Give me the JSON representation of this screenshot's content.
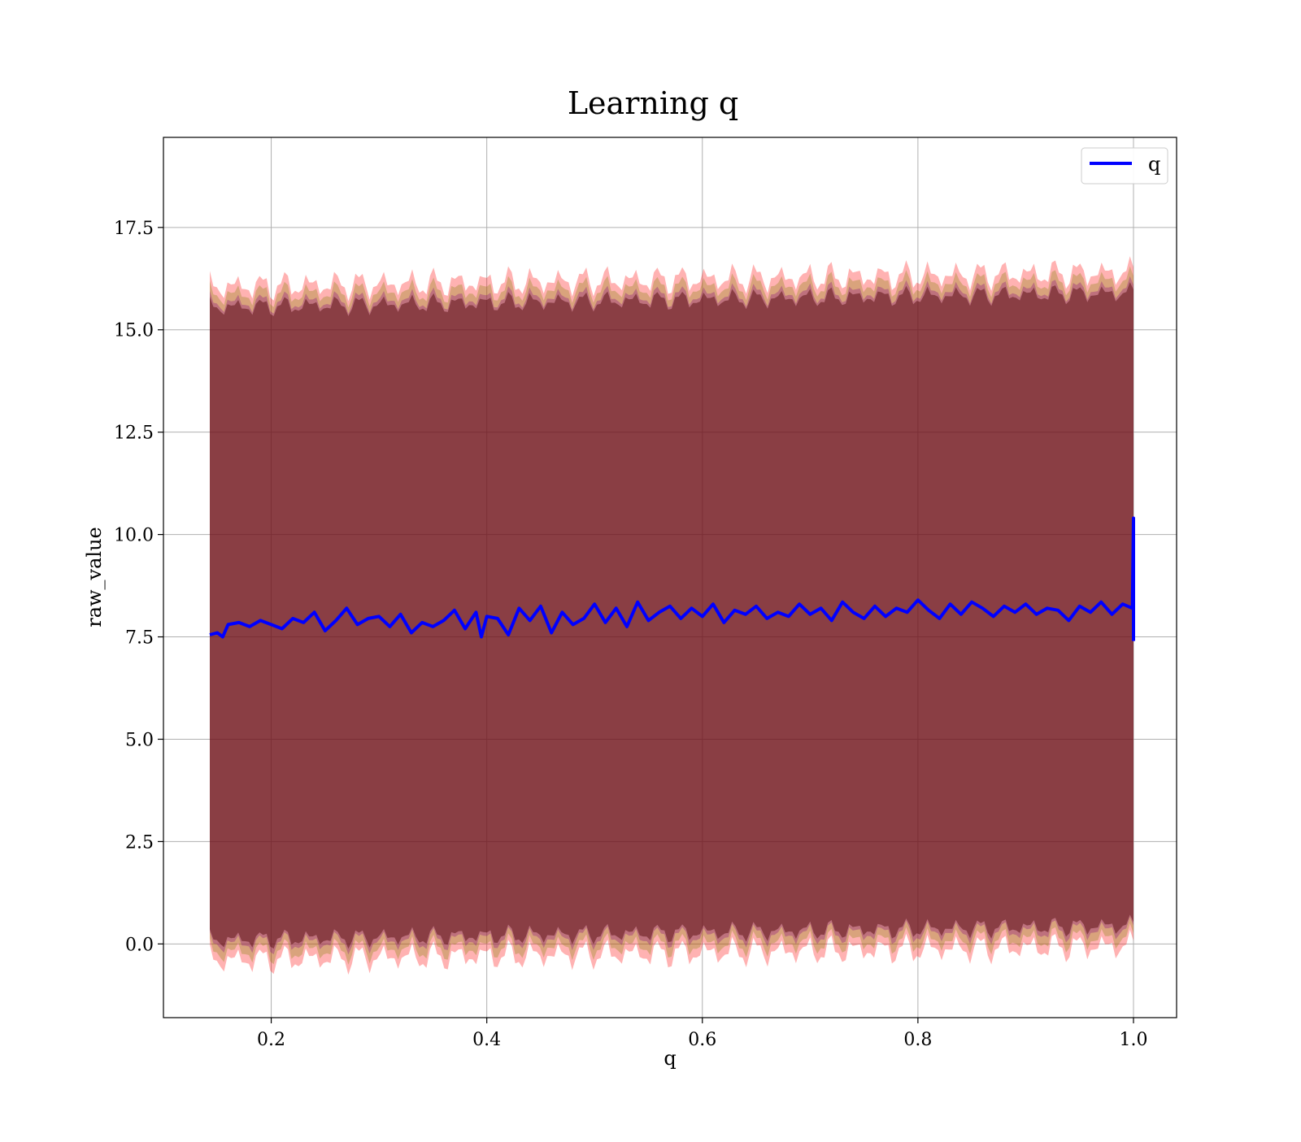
{
  "chart_data": {
    "type": "line",
    "title": "Learning q",
    "xlabel": "q",
    "ylabel": "raw_value",
    "xlim": [
      0.1,
      1.04
    ],
    "ylim": [
      -1.8,
      19.7
    ],
    "xticks": [
      0.2,
      0.4,
      0.6,
      0.8,
      1.0
    ],
    "xtick_labels": [
      "0.2",
      "0.4",
      "0.6",
      "0.8",
      "1.0"
    ],
    "yticks": [
      0.0,
      2.5,
      5.0,
      7.5,
      10.0,
      12.5,
      15.0,
      17.5
    ],
    "ytick_labels": [
      "0.0",
      "2.5",
      "5.0",
      "7.5",
      "10.0",
      "12.5",
      "15.0",
      "17.5"
    ],
    "grid": true,
    "legend": {
      "position": "top-right",
      "entries": [
        "q"
      ]
    },
    "series": [
      {
        "name": "q",
        "color": "#0000ff",
        "x": [
          0.143,
          0.15,
          0.155,
          0.16,
          0.17,
          0.18,
          0.19,
          0.2,
          0.21,
          0.22,
          0.23,
          0.24,
          0.25,
          0.26,
          0.27,
          0.28,
          0.29,
          0.3,
          0.31,
          0.32,
          0.33,
          0.34,
          0.35,
          0.36,
          0.37,
          0.38,
          0.39,
          0.395,
          0.4,
          0.41,
          0.42,
          0.43,
          0.44,
          0.45,
          0.46,
          0.47,
          0.48,
          0.49,
          0.5,
          0.51,
          0.52,
          0.53,
          0.54,
          0.55,
          0.56,
          0.57,
          0.58,
          0.59,
          0.6,
          0.61,
          0.62,
          0.63,
          0.64,
          0.65,
          0.66,
          0.67,
          0.68,
          0.69,
          0.7,
          0.71,
          0.72,
          0.73,
          0.74,
          0.75,
          0.76,
          0.77,
          0.78,
          0.79,
          0.8,
          0.81,
          0.82,
          0.83,
          0.84,
          0.85,
          0.86,
          0.87,
          0.88,
          0.89,
          0.9,
          0.91,
          0.92,
          0.93,
          0.94,
          0.95,
          0.96,
          0.97,
          0.98,
          0.99,
          0.999,
          1.0,
          1.0
        ],
        "y": [
          7.55,
          7.6,
          7.5,
          7.8,
          7.85,
          7.75,
          7.9,
          7.8,
          7.7,
          7.95,
          7.85,
          8.1,
          7.65,
          7.9,
          8.2,
          7.8,
          7.95,
          8.0,
          7.75,
          8.05,
          7.6,
          7.85,
          7.75,
          7.9,
          8.15,
          7.7,
          8.1,
          7.5,
          8.0,
          7.95,
          7.55,
          8.2,
          7.9,
          8.25,
          7.6,
          8.1,
          7.8,
          7.95,
          8.3,
          7.85,
          8.2,
          7.75,
          8.35,
          7.9,
          8.1,
          8.25,
          7.95,
          8.2,
          8.0,
          8.3,
          7.85,
          8.15,
          8.05,
          8.25,
          7.95,
          8.1,
          8.0,
          8.3,
          8.05,
          8.2,
          7.9,
          8.35,
          8.1,
          7.95,
          8.25,
          8.0,
          8.2,
          8.1,
          8.4,
          8.15,
          7.95,
          8.3,
          8.05,
          8.35,
          8.2,
          8.0,
          8.25,
          8.1,
          8.3,
          8.05,
          8.2,
          8.15,
          7.9,
          8.25,
          8.1,
          8.35,
          8.05,
          8.3,
          8.2,
          10.4,
          7.4
        ]
      }
    ],
    "bands": [
      {
        "color": "#ff0000",
        "opacity": 0.3,
        "upper_base": 16.05,
        "lower_base": -0.4,
        "amplitude": 0.45
      },
      {
        "color": "#808000",
        "opacity": 0.3,
        "upper_base": 15.85,
        "lower_base": -0.2,
        "amplitude": 0.4
      },
      {
        "color": "#800080",
        "opacity": 0.3,
        "upper_base": 15.65,
        "lower_base": 0.0,
        "amplitude": 0.35
      },
      {
        "color": "#4b0000",
        "opacity": 0.45,
        "upper_base": 15.55,
        "lower_base": 0.1,
        "amplitude": 0.3
      }
    ],
    "band_x_range": [
      0.143,
      1.0
    ]
  }
}
